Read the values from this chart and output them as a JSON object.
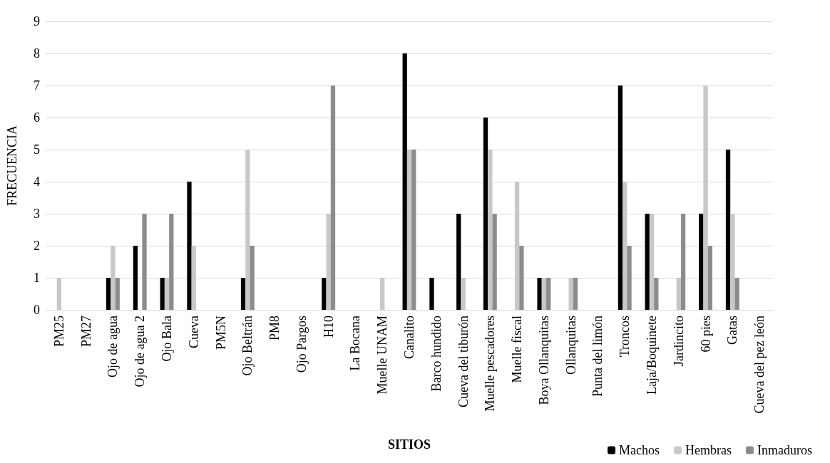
{
  "chart_data": {
    "type": "bar",
    "xlabel": "SITIOS",
    "ylabel": "FRECUENCIA",
    "categories": [
      "PM25",
      "PM27",
      "Ojo de agua",
      "Ojo de agua 2",
      "Ojo Bala",
      "Cueva",
      "PM5N",
      "Ojo Beltrán",
      "PM8",
      "Ojo Pargos",
      "H10",
      "La Bocana",
      "Muelle UNAM",
      "Canalito",
      "Barco hundido",
      "Cueva del tiburón",
      "Muelle pescadores",
      "Muelle fiscal",
      "Boya Ollanquitas",
      "Ollanquitas",
      "Punta del limón",
      "Troncos",
      "Laja/Boquinete",
      "Jardincito",
      "60 pies",
      "Gatas",
      "Cueva del pez león"
    ],
    "series": [
      {
        "name": "Machos",
        "color": "#000000",
        "values": [
          0,
          0,
          1,
          2,
          1,
          4,
          0,
          1,
          0,
          0,
          1,
          0,
          0,
          8,
          1,
          3,
          6,
          0,
          1,
          0,
          0,
          7,
          3,
          0,
          3,
          5,
          0
        ]
      },
      {
        "name": "Hembras",
        "color": "#c8c8c8",
        "values": [
          1,
          0,
          2,
          0,
          1,
          2,
          0,
          5,
          0,
          0,
          3,
          0,
          1,
          5,
          0,
          1,
          5,
          4,
          1,
          1,
          0,
          4,
          3,
          1,
          7,
          3,
          0
        ]
      },
      {
        "name": "Inmaduros",
        "color": "#8c8c8c",
        "values": [
          0,
          0,
          1,
          3,
          3,
          0,
          0,
          2,
          0,
          0,
          7,
          0,
          0,
          5,
          0,
          0,
          3,
          2,
          1,
          1,
          0,
          2,
          1,
          3,
          2,
          1,
          0
        ]
      }
    ],
    "ylim": [
      0,
      9
    ],
    "yticks": [
      0,
      1,
      2,
      3,
      4,
      5,
      6,
      7,
      8,
      9
    ],
    "grid": "y",
    "legend": "bottom right"
  }
}
